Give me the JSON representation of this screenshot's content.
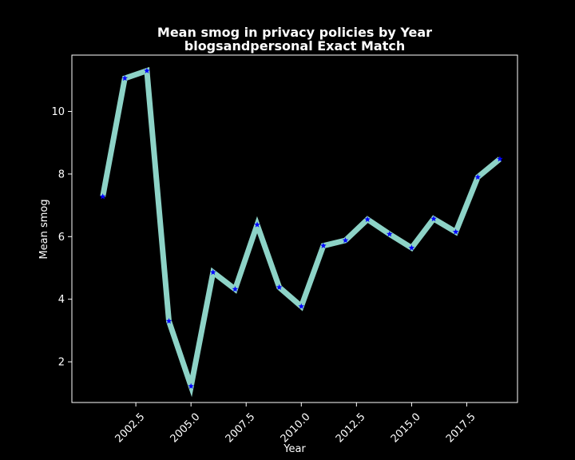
{
  "chart_data": {
    "type": "line",
    "title": "Mean smog in privacy policies by Year",
    "subtitle": "blogsandpersonal Exact Match",
    "xlabel": "Year",
    "ylabel": "Mean smog",
    "xlim": [
      1999.6,
      2019.8
    ],
    "ylim": [
      0.7,
      11.8
    ],
    "xticks": [
      2002.5,
      2005.0,
      2007.5,
      2010.0,
      2012.5,
      2015.0,
      2017.5
    ],
    "xtick_labels": [
      "2002.5",
      "2005.0",
      "2007.5",
      "2010.0",
      "2012.5",
      "2015.0",
      "2017.5"
    ],
    "yticks": [
      2,
      4,
      6,
      8,
      10
    ],
    "ytick_labels": [
      "2",
      "4",
      "6",
      "8",
      "10"
    ],
    "grid": false,
    "legend": "none",
    "series": [
      {
        "x": [
          2001,
          2002,
          2003,
          2004,
          2005,
          2006,
          2007,
          2008,
          2009,
          2010,
          2011,
          2012,
          2013,
          2014,
          2015,
          2016,
          2017,
          2018,
          2019
        ],
        "y": [
          7.28,
          11.06,
          11.3,
          3.3,
          1.22,
          4.86,
          4.32,
          6.38,
          4.38,
          3.77,
          5.71,
          5.88,
          6.55,
          6.08,
          5.64,
          6.57,
          6.15,
          7.9,
          8.48
        ],
        "line_color": "#8dd3c7",
        "marker": "star",
        "marker_color": "#0000ff"
      }
    ]
  }
}
